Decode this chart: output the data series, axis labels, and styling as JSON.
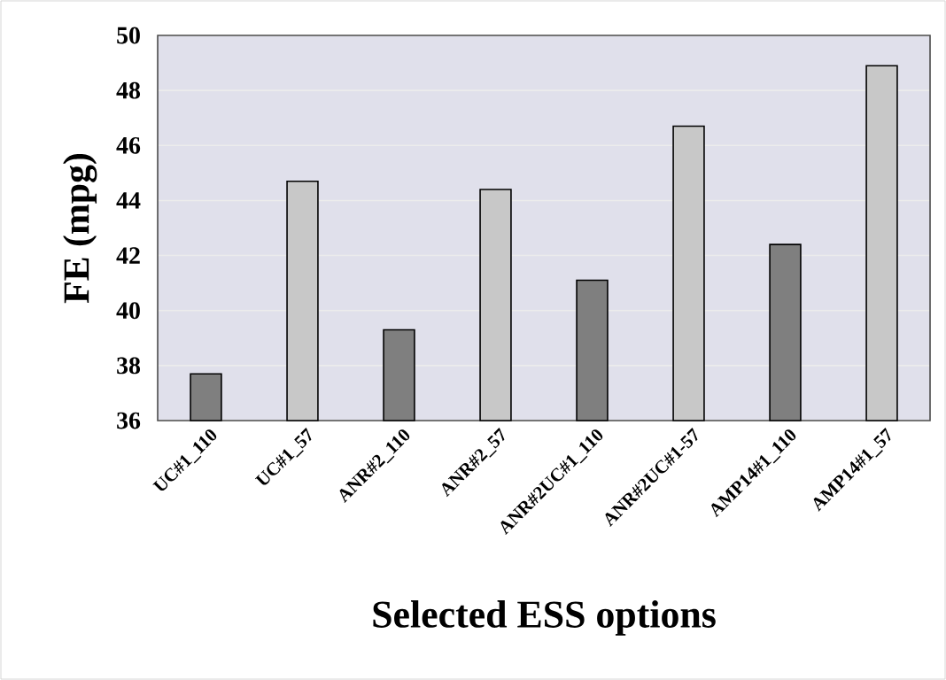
{
  "chart_data": {
    "type": "bar",
    "xlabel": "Selected ESS options",
    "ylabel": "FE (mpg)",
    "categories": [
      "UC#1_110",
      "UC#1_57",
      "ANR#2_110",
      "ANR#2_57",
      "ANR#2UC#1_110",
      "ANR#2UC#1-57",
      "AMP14#1_110",
      "AMP14#1_57"
    ],
    "series": [
      {
        "color": "#7f7f7f",
        "values": [
          37.7,
          null,
          39.3,
          null,
          41.1,
          null,
          42.4,
          null
        ]
      },
      {
        "color": "#c8c8c8",
        "values": [
          null,
          44.7,
          null,
          44.4,
          null,
          46.7,
          null,
          48.9
        ]
      }
    ],
    "ylim": [
      36,
      50
    ],
    "yticks": [
      36,
      38,
      40,
      42,
      44,
      46,
      48,
      50
    ],
    "grid": "y"
  }
}
